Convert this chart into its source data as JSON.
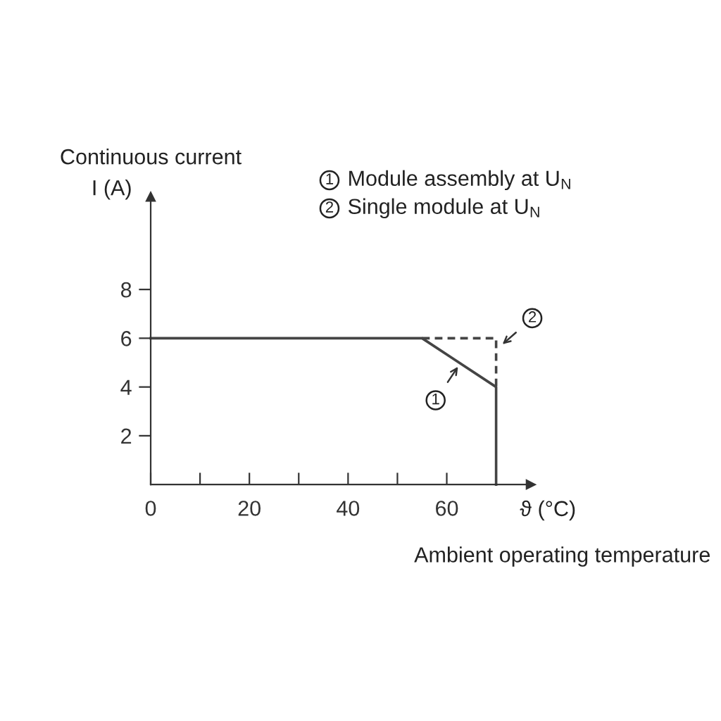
{
  "chart_data": {
    "type": "line",
    "ylabel": "Continuous current",
    "xlabel": "Ambient operating temperature",
    "annotations": [
      "1",
      "Module assembly at U$_{N}$",
      "2",
      "Single module at U$_{N}$",
      "I (A)",
      "ϑ (°C)",
      {
        "text": "1",
        "x": 62.5,
        "y": 4.9
      },
      {
        "text": "2",
        "x": 71,
        "y": 5.7
      }
    ],
    "series": [
      {
        "color": "#444444",
        "line_style": "solid",
        "x": [
          0,
          55,
          70,
          70
        ],
        "values": [
          6,
          6,
          4,
          0
        ]
      },
      {
        "color": "#444444",
        "line_style": "dashed",
        "x": [
          55,
          70,
          70
        ],
        "values": [
          6,
          6,
          4
        ]
      }
    ],
    "xlim": [
      0,
      77
    ],
    "ylim": [
      0,
      11.8
    ],
    "xticks": [
      0,
      20,
      40,
      60,
      {
        "value": 10,
        "label": null
      },
      {
        "value": 30,
        "label": null
      },
      {
        "value": 50,
        "label": null
      },
      {
        "value": 70,
        "label": null
      }
    ],
    "yticks": [
      2,
      4,
      6,
      8
    ],
    "grid": false,
    "marker": "none"
  }
}
